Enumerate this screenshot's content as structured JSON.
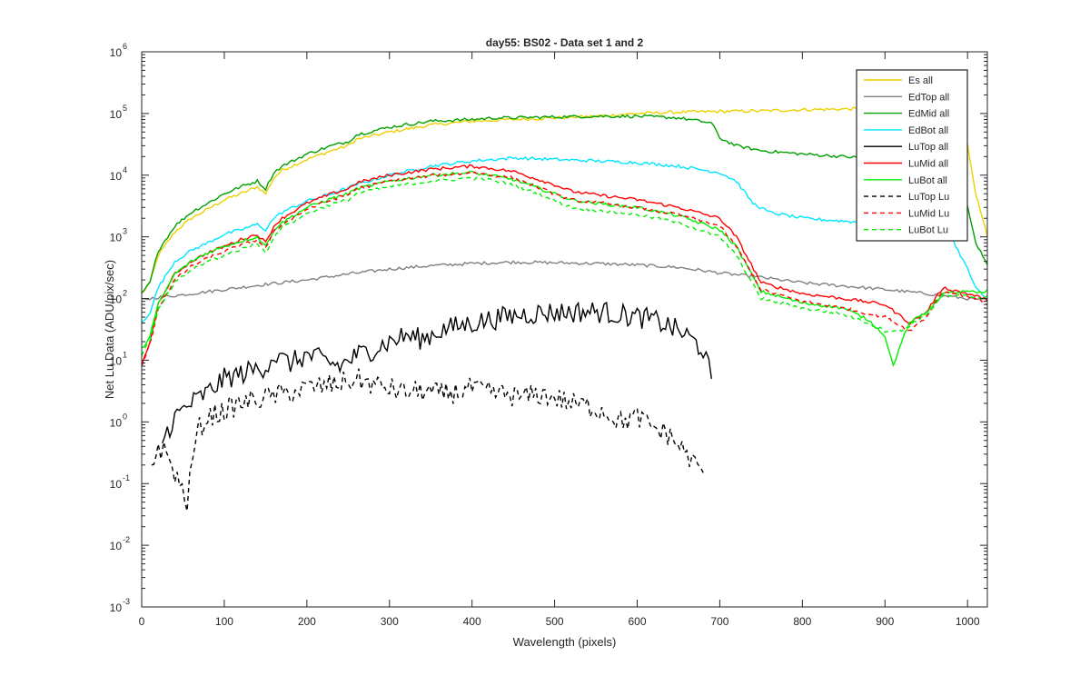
{
  "chart_data": {
    "type": "line",
    "title": "day55: BS02 - Data set 1 and 2",
    "xlabel": "Wavelength (pixels)",
    "ylabel": "Net Lu Data (ADU/pix/sec)",
    "xlim": [
      0,
      1024
    ],
    "ylim": [
      0.001,
      1000000
    ],
    "yscale": "log",
    "grid": false,
    "legend_position": "top-right",
    "x_ticks": [
      {
        "value": 0,
        "label": "0"
      },
      {
        "value": 100,
        "label": "100"
      },
      {
        "value": 200,
        "label": "200"
      },
      {
        "value": 300,
        "label": "300"
      },
      {
        "value": 400,
        "label": "400"
      },
      {
        "value": 500,
        "label": "500"
      },
      {
        "value": 600,
        "label": "600"
      },
      {
        "value": 700,
        "label": "700"
      },
      {
        "value": 800,
        "label": "800"
      },
      {
        "value": 900,
        "label": "900"
      },
      {
        "value": 1000,
        "label": "1000"
      }
    ],
    "y_ticks": [
      {
        "value": 0.001,
        "base": "10",
        "exp": "-3"
      },
      {
        "value": 0.01,
        "base": "10",
        "exp": "-2"
      },
      {
        "value": 0.1,
        "base": "10",
        "exp": "-1"
      },
      {
        "value": 1,
        "base": "10",
        "exp": "0"
      },
      {
        "value": 10,
        "base": "10",
        "exp": "1"
      },
      {
        "value": 100,
        "base": "10",
        "exp": "2"
      },
      {
        "value": 1000,
        "base": "10",
        "exp": "3"
      },
      {
        "value": 10000,
        "base": "10",
        "exp": "4"
      },
      {
        "value": 100000,
        "base": "10",
        "exp": "5"
      },
      {
        "value": 1000000,
        "base": "10",
        "exp": "6"
      }
    ],
    "series": [
      {
        "name": "Es  all",
        "color": "#EDD000",
        "dash": "solid",
        "x": [
          0,
          10,
          20,
          40,
          60,
          80,
          100,
          120,
          140,
          150,
          160,
          170,
          200,
          230,
          250,
          260,
          300,
          350,
          400,
          430,
          450,
          500,
          550,
          600,
          650,
          700,
          750,
          800,
          850,
          900,
          950,
          980,
          1000,
          1010,
          1024
        ],
        "y": [
          120,
          180,
          500,
          1200,
          2000,
          2800,
          4000,
          5000,
          6500,
          5000,
          9000,
          12000,
          18000,
          25000,
          30000,
          38000,
          50000,
          65000,
          75000,
          78000,
          80000,
          85000,
          90000,
          100000,
          105000,
          108000,
          110000,
          115000,
          118000,
          120000,
          120000,
          115000,
          30000,
          5000,
          1000
        ]
      },
      {
        "name": "EdTop  all",
        "color": "#808080",
        "dash": "solid",
        "x": [
          0,
          10,
          20,
          50,
          100,
          150,
          200,
          250,
          300,
          350,
          400,
          450,
          500,
          550,
          600,
          650,
          700,
          750,
          800,
          850,
          900,
          950,
          1000,
          1024
        ],
        "y": [
          95,
          100,
          105,
          115,
          140,
          170,
          200,
          250,
          300,
          340,
          370,
          390,
          380,
          370,
          350,
          320,
          260,
          220,
          180,
          160,
          140,
          120,
          100,
          95
        ]
      },
      {
        "name": "EdMid  all",
        "color": "#00A000",
        "dash": "solid",
        "x": [
          0,
          10,
          20,
          40,
          60,
          80,
          100,
          120,
          140,
          150,
          160,
          170,
          200,
          230,
          250,
          260,
          300,
          350,
          400,
          430,
          450,
          500,
          550,
          600,
          650,
          690,
          700,
          720,
          750,
          800,
          850,
          900,
          950,
          980,
          1000,
          1010,
          1024
        ],
        "y": [
          120,
          180,
          600,
          1500,
          2500,
          3500,
          5000,
          6500,
          8000,
          6000,
          11000,
          14000,
          22000,
          30000,
          35000,
          45000,
          60000,
          75000,
          80000,
          85000,
          85000,
          88000,
          90000,
          90000,
          85000,
          70000,
          40000,
          30000,
          25000,
          22000,
          20000,
          18000,
          15000,
          10000,
          3000,
          800,
          350
        ]
      },
      {
        "name": "EdBot  all",
        "color": "#00E5FF",
        "dash": "solid",
        "x": [
          0,
          10,
          20,
          40,
          60,
          80,
          100,
          120,
          140,
          150,
          160,
          170,
          200,
          230,
          250,
          260,
          300,
          350,
          400,
          450,
          500,
          550,
          600,
          650,
          700,
          720,
          740,
          760,
          800,
          850,
          900,
          950,
          980,
          1000,
          1010,
          1024
        ],
        "y": [
          40,
          60,
          150,
          400,
          600,
          800,
          1100,
          1300,
          1600,
          1300,
          2000,
          2500,
          3800,
          5000,
          6200,
          7000,
          10000,
          14000,
          17000,
          19000,
          18000,
          17000,
          16000,
          14000,
          11000,
          8000,
          3500,
          2500,
          2000,
          1800,
          1600,
          1300,
          1000,
          300,
          150,
          90
        ]
      },
      {
        "name": "LuTop  all",
        "color": "#000000",
        "dash": "solid",
        "x": [
          25,
          40,
          60,
          80,
          100,
          120,
          150,
          160,
          170,
          180,
          200,
          220,
          240,
          260,
          280,
          300,
          320,
          340,
          360,
          380,
          400,
          420,
          440,
          460,
          480,
          500,
          520,
          540,
          560,
          580,
          600,
          620,
          640,
          660,
          680,
          690
        ],
        "y": [
          0.5,
          1.2,
          2,
          3,
          5,
          6,
          8,
          12,
          10,
          9,
          12,
          10,
          8,
          12,
          15,
          20,
          25,
          22,
          30,
          35,
          40,
          45,
          50,
          55,
          58,
          60,
          60,
          62,
          60,
          55,
          50,
          45,
          35,
          25,
          15,
          5
        ]
      },
      {
        "name": "LuMid  all",
        "color": "#FF0000",
        "dash": "solid",
        "x": [
          0,
          10,
          20,
          40,
          60,
          80,
          100,
          120,
          140,
          150,
          160,
          170,
          200,
          230,
          250,
          260,
          300,
          350,
          400,
          420,
          450,
          500,
          520,
          550,
          600,
          650,
          700,
          720,
          750,
          800,
          850,
          900,
          930,
          950,
          970,
          1000,
          1020,
          1024
        ],
        "y": [
          8,
          20,
          80,
          250,
          400,
          550,
          700,
          900,
          1100,
          800,
          1500,
          2000,
          3500,
          5000,
          6000,
          7500,
          10000,
          12500,
          14000,
          13000,
          11500,
          7000,
          5500,
          4800,
          4000,
          3000,
          2000,
          1000,
          180,
          120,
          100,
          80,
          40,
          60,
          150,
          120,
          100,
          90
        ]
      },
      {
        "name": "LuBot  all",
        "color": "#00EE00",
        "dash": "solid",
        "x": [
          0,
          10,
          20,
          40,
          60,
          80,
          100,
          120,
          140,
          150,
          160,
          170,
          200,
          230,
          250,
          260,
          300,
          350,
          400,
          420,
          450,
          500,
          520,
          550,
          600,
          650,
          700,
          720,
          750,
          800,
          850,
          880,
          900,
          910,
          920,
          930,
          950,
          970,
          1000,
          1020,
          1024
        ],
        "y": [
          15,
          25,
          80,
          250,
          400,
          550,
          700,
          850,
          1000,
          700,
          1300,
          1700,
          3000,
          4200,
          5000,
          6000,
          8000,
          10000,
          11000,
          10000,
          8500,
          5000,
          4000,
          3500,
          3000,
          2200,
          1300,
          700,
          130,
          85,
          70,
          45,
          25,
          8,
          20,
          40,
          60,
          120,
          130,
          120,
          140
        ]
      },
      {
        "name": "LuTop  Lu",
        "color": "#000000",
        "dash": "dashed",
        "x": [
          12,
          20,
          30,
          40,
          55,
          65,
          70,
          80,
          100,
          120,
          150,
          180,
          200,
          230,
          250,
          260,
          280,
          300,
          320,
          340,
          360,
          380,
          400,
          420,
          440,
          460,
          480,
          500,
          520,
          540,
          560,
          580,
          600,
          620,
          640,
          660,
          670,
          680
        ],
        "y": [
          0.2,
          0.4,
          0.3,
          0.15,
          0.05,
          0.5,
          0.8,
          1.2,
          1.5,
          2,
          2.5,
          3,
          3.5,
          4,
          4.5,
          5,
          4,
          3.5,
          3,
          3.2,
          2.8,
          3,
          3.5,
          3,
          2.8,
          2.5,
          2.8,
          2.5,
          2,
          1.8,
          1.5,
          1,
          1.2,
          0.8,
          0.6,
          0.3,
          0.2,
          0.15
        ]
      },
      {
        "name": "LuMid  Lu",
        "color": "#FF0000",
        "dash": "dashed",
        "x": [
          0,
          10,
          20,
          40,
          60,
          80,
          100,
          120,
          140,
          150,
          160,
          170,
          200,
          230,
          250,
          260,
          300,
          350,
          400,
          420,
          450,
          500,
          520,
          550,
          600,
          650,
          700,
          720,
          750,
          800,
          850,
          900,
          930,
          950,
          970,
          1000,
          1020,
          1024
        ],
        "y": [
          8,
          18,
          70,
          200,
          330,
          450,
          580,
          730,
          900,
          650,
          1200,
          1600,
          2800,
          4000,
          4800,
          6000,
          8000,
          9800,
          11000,
          10200,
          9000,
          5000,
          4000,
          3600,
          3000,
          2300,
          1500,
          700,
          140,
          90,
          70,
          50,
          30,
          50,
          130,
          110,
          90,
          80
        ]
      },
      {
        "name": "LuBot  Lu",
        "color": "#00EE00",
        "dash": "dashed",
        "x": [
          0,
          10,
          20,
          40,
          60,
          80,
          100,
          120,
          140,
          150,
          160,
          170,
          200,
          230,
          250,
          260,
          300,
          350,
          400,
          420,
          450,
          500,
          520,
          550,
          600,
          650,
          700,
          720,
          750,
          800,
          850,
          880,
          900,
          920,
          950,
          970,
          1000,
          1020,
          1024
        ],
        "y": [
          12,
          22,
          65,
          180,
          290,
          400,
          500,
          630,
          780,
          550,
          1000,
          1400,
          2400,
          3400,
          4000,
          5000,
          6500,
          8000,
          9000,
          8400,
          7000,
          3900,
          3000,
          2700,
          2300,
          1700,
          1000,
          500,
          100,
          70,
          55,
          40,
          30,
          30,
          55,
          110,
          110,
          100,
          110
        ]
      }
    ]
  }
}
